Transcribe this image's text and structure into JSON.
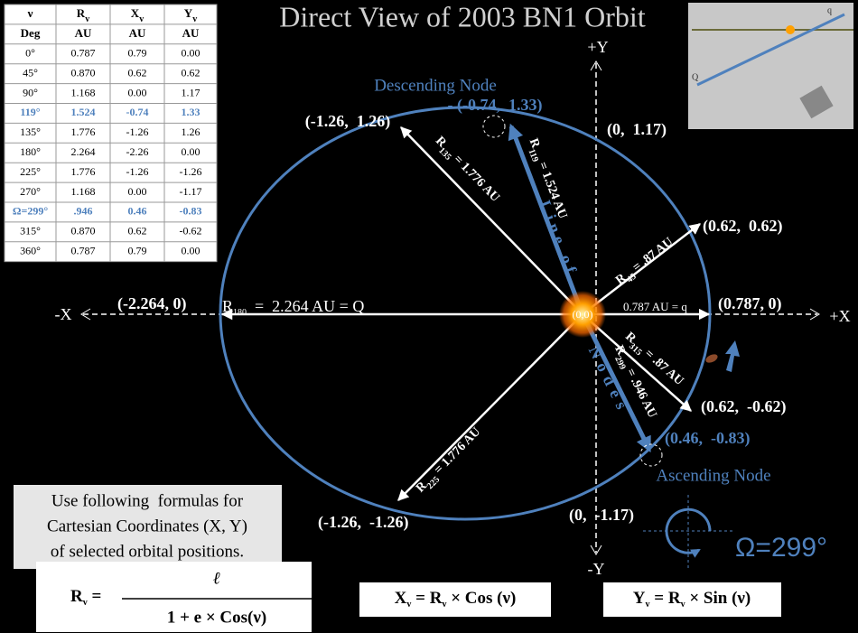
{
  "title": "Direct View of 2003 BN1 Orbit",
  "table": {
    "header": [
      {
        "main": "ν"
      },
      {
        "main": "R",
        "sub": "v"
      },
      {
        "main": "X",
        "sub": "v"
      },
      {
        "main": "Y",
        "sub": "v"
      }
    ],
    "units": [
      "Deg",
      "AU",
      "AU",
      "AU"
    ],
    "rows": [
      [
        "0°",
        "0.787",
        "0.79",
        "0.00"
      ],
      [
        "45°",
        "0.870",
        "0.62",
        "0.62"
      ],
      [
        "90°",
        "1.168",
        "0.00",
        "1.17"
      ],
      [
        "119°",
        "1.524",
        "-0.74",
        "1.33"
      ],
      [
        "135°",
        "1.776",
        "-1.26",
        "1.26"
      ],
      [
        "180°",
        "2.264",
        "-2.26",
        "0.00"
      ],
      [
        "225°",
        "1.776",
        "-1.26",
        "-1.26"
      ],
      [
        "270°",
        "1.168",
        "0.00",
        "-1.17"
      ],
      [
        "Ω=299°",
        ".946",
        "0.46",
        "-0.83"
      ],
      [
        "315°",
        "0.870",
        "0.62",
        "-0.62"
      ],
      [
        "360°",
        "0.787",
        "0.79",
        "0.00"
      ]
    ],
    "highlight_rows": [
      3,
      8
    ],
    "highlight_color": "#4f81bd"
  },
  "inset": {
    "q": "q",
    "Q": "Q"
  },
  "axes": {
    "plus_y": "+Y",
    "minus_y": "-Y",
    "minus_x": "-X",
    "plus_x": "+X"
  },
  "nodes": {
    "descending": "Descending Node",
    "ascending": "Ascending Node",
    "line_upper": "Line of",
    "line_lower": "Nodes"
  },
  "points": {
    "p135": "(-1.26,  1.26)",
    "p119": "- (-0.74,  1.33)",
    "p90": "(0,  1.17)",
    "p45": "(0.62,  0.62)",
    "p180": "(-2.264, 0)",
    "p0": "(0.787, 0)",
    "p315": "(0.62,  -0.62)",
    "p299": "(0.46,  -0.83)",
    "p225": "(-1.26,  -1.26)",
    "p270": "(0,  -1.17)"
  },
  "radii": {
    "r135": [
      "R",
      "135",
      " = 1.776 AU"
    ],
    "r119": [
      "R",
      "119",
      " = 1.524 AU"
    ],
    "r45": [
      "R",
      "45",
      " = .87 AU"
    ],
    "r315": [
      "R",
      "315",
      " = .87 AU"
    ],
    "r299": [
      "R",
      "299",
      " = .946 AU"
    ],
    "r225": [
      "R",
      "225",
      " = 1.776 AU"
    ],
    "r180": [
      "R",
      "180",
      "  =  2.264 AU = Q"
    ]
  },
  "origin": "(0,0)",
  "perihelion": "0.787 AU = q",
  "formulas": {
    "note": [
      "Use following  formulas for",
      "Cartesian Coordinates (X, Y)",
      "of selected orbital positions."
    ],
    "r": {
      "lhs": [
        "R",
        "v",
        " ="
      ],
      "numerator": "ℓ",
      "denominator": "1 + e × Cos(ν)"
    },
    "x": [
      "X",
      "v",
      " = R",
      "v",
      " × Cos (ν)"
    ],
    "y": [
      "Y",
      "v",
      " = R",
      "v",
      " × Sin (ν)"
    ]
  },
  "omega": "Ω=299°"
}
